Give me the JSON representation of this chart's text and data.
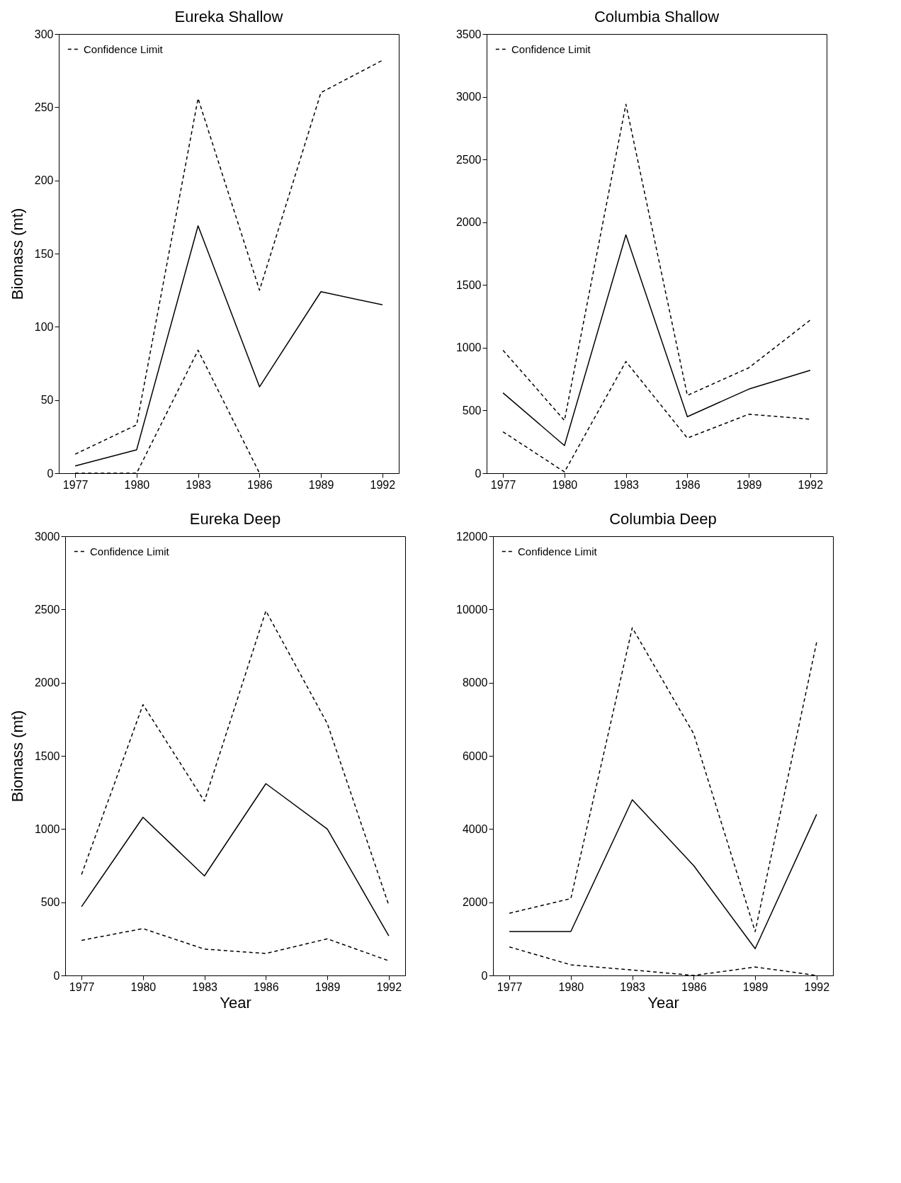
{
  "chart_data": [
    {
      "type": "line",
      "title": "Eureka Shallow",
      "ylabel": "Biomass (mt)",
      "x": [
        1977,
        1980,
        1983,
        1986,
        1989,
        1992
      ],
      "xlim": [
        1976.2,
        1992.8
      ],
      "xticks": [
        1977,
        1980,
        1983,
        1986,
        1989,
        1992
      ],
      "ylim": [
        0,
        300
      ],
      "yticks": [
        0,
        50,
        100,
        150,
        200,
        250,
        300
      ],
      "legend": "top left",
      "series": [
        {
          "name": "Confidence Limit",
          "color": "#000000",
          "line_style": "dashed",
          "values": [
            13,
            33,
            256,
            125,
            260,
            282
          ]
        },
        {
          "color": "#000000",
          "line_style": "dashed",
          "values": [
            0,
            0,
            84,
            0,
            null,
            null
          ]
        },
        {
          "color": "#000000",
          "line_style": "solid",
          "values": [
            5,
            16,
            169,
            59,
            124,
            115
          ]
        }
      ]
    },
    {
      "type": "line",
      "title": "Columbia Shallow",
      "x": [
        1977,
        1980,
        1983,
        1986,
        1989,
        1992
      ],
      "xlim": [
        1976.2,
        1992.8
      ],
      "xticks": [
        1977,
        1980,
        1983,
        1986,
        1989,
        1992
      ],
      "ylim": [
        0,
        3500
      ],
      "yticks": [
        0,
        500,
        1000,
        1500,
        2000,
        2500,
        3000,
        3500
      ],
      "legend": "top left",
      "series": [
        {
          "name": "Confidence Limit",
          "color": "#000000",
          "line_style": "dashed",
          "values": [
            980,
            420,
            2940,
            620,
            840,
            1220
          ]
        },
        {
          "color": "#000000",
          "line_style": "dashed",
          "values": [
            330,
            10,
            890,
            280,
            470,
            430
          ]
        },
        {
          "color": "#000000",
          "line_style": "solid",
          "values": [
            640,
            220,
            1900,
            450,
            670,
            820
          ]
        }
      ]
    },
    {
      "type": "line",
      "title": "Eureka Deep",
      "xlabel": "Year",
      "ylabel": "Biomass (mt)",
      "x": [
        1977,
        1980,
        1983,
        1986,
        1989,
        1992
      ],
      "xlim": [
        1976.2,
        1992.8
      ],
      "xticks": [
        1977,
        1980,
        1983,
        1986,
        1989,
        1992
      ],
      "ylim": [
        0,
        3000
      ],
      "yticks": [
        0,
        500,
        1000,
        1500,
        2000,
        2500,
        3000
      ],
      "legend": "top left",
      "series": [
        {
          "name": "Confidence Limit",
          "color": "#000000",
          "line_style": "dashed",
          "values": [
            690,
            1850,
            1190,
            2490,
            1720,
            480
          ]
        },
        {
          "color": "#000000",
          "line_style": "dashed",
          "values": [
            240,
            320,
            180,
            150,
            250,
            100
          ]
        },
        {
          "color": "#000000",
          "line_style": "solid",
          "values": [
            470,
            1080,
            680,
            1310,
            1000,
            270
          ]
        }
      ]
    },
    {
      "type": "line",
      "title": "Columbia Deep",
      "xlabel": "Year",
      "x": [
        1977,
        1980,
        1983,
        1986,
        1989,
        1992
      ],
      "xlim": [
        1976.2,
        1992.8
      ],
      "xticks": [
        1977,
        1980,
        1983,
        1986,
        1989,
        1992
      ],
      "ylim": [
        0,
        12000
      ],
      "yticks": [
        0,
        2000,
        4000,
        6000,
        8000,
        10000,
        12000
      ],
      "legend": "top left",
      "series": [
        {
          "name": "Confidence Limit",
          "color": "#000000",
          "line_style": "dashed",
          "values": [
            1700,
            2100,
            9500,
            6600,
            1200,
            9100
          ]
        },
        {
          "color": "#000000",
          "line_style": "dashed",
          "values": [
            780,
            290,
            150,
            0,
            230,
            0
          ]
        },
        {
          "color": "#000000",
          "line_style": "solid",
          "values": [
            1200,
            1200,
            4800,
            3000,
            730,
            4400
          ]
        }
      ]
    }
  ]
}
